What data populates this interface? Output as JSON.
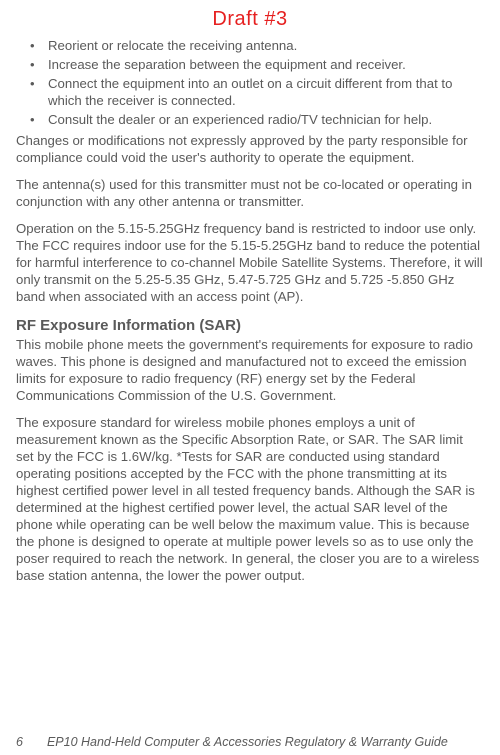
{
  "colors": {
    "text": "#5a5a5a",
    "draft": "#e62020",
    "background": "#ffffff"
  },
  "draft_label": "Draft #3",
  "bullets": [
    "Reorient or relocate the receiving antenna.",
    "Increase the separation between the equipment and receiver.",
    "Connect the equipment into an outlet on a circuit different from that to which the receiver is connected.",
    "Consult the dealer or an experienced radio/TV technician for help."
  ],
  "paragraphs": {
    "p1": "Changes or modifications not expressly approved by the party responsible for compliance could void the user's authority to operate the equipment.",
    "p2": "The antenna(s) used for this transmitter must not be co-located or operating in conjunction with any other antenna or transmitter.",
    "p3": "Operation on the 5.15-5.25GHz frequency band is restricted to indoor use only. The FCC requires indoor use for the 5.15-5.25GHz band to reduce the potential for harmful interference to co-channel Mobile Satellite Systems. Therefore, it will only transmit on the 5.25-5.35 GHz, 5.47-5.725 GHz and 5.725 -5.850 GHz band when associated with an access point (AP).",
    "p4": "This mobile phone meets the government's requirements for expo­sure to radio waves. This phone is designed and manufactured not to exceed the emission limits for exposure to radio frequency (RF) energy set by the Federal Communications Commission of the U.S. Government.",
    "p5": "The exposure standard for wireless mobile phones employs a unit of measurement known as the Specific Absorption Rate, or SAR. The SAR limit set by the FCC is 1.6W/kg. *Tests for SAR are conducted using standard operating positions accepted by the FCC with the phone transmitting at its highest certified power level in all tested frequency bands. Although the SAR is determined at the highest cer­tified power level, the actual SAR level of the phone while operating can be well below the maximum value. This is because the phone is designed to operate at multiple power levels so as to use only the poser required to reach the network. In general, the closer you are to a wireless base station antenna, the lower the power output."
  },
  "heading": "RF Exposure Information (SAR)",
  "footer": {
    "page_number": "6",
    "title": "EP10 Hand-Held Computer & Accessories Regulatory & Warranty Guide"
  }
}
